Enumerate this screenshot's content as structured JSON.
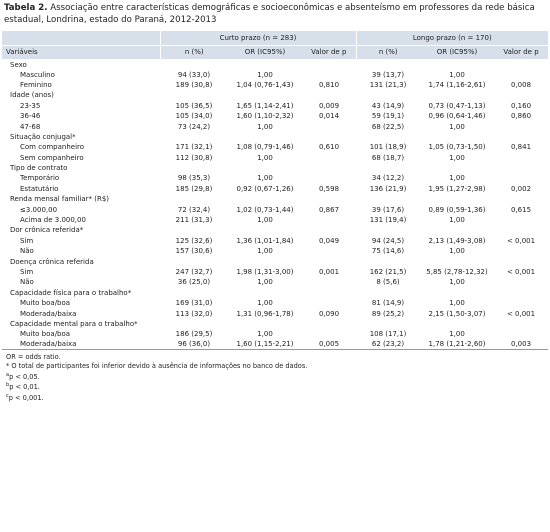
{
  "title": {
    "label": "Tabela 2.",
    "text": "Associação entre características demográficas e socioeconômicas e absenteísmo em professores da rede básica estadual, Londrina, estado do Paraná, 2012-2013"
  },
  "table": {
    "groups": [
      "Curto prazo (n = 283)",
      "Longo prazo (n = 170)"
    ],
    "columns": [
      "Variáveis",
      "n (%)",
      "OR (IC95%)",
      "Valor de p",
      "n (%)",
      "OR (IC95%)",
      "Valor de p"
    ],
    "rows": [
      {
        "group": "Sexo"
      },
      {
        "cells": [
          "Masculino",
          "94 (33,0)",
          "1,00",
          null,
          "39 (13,7)",
          "1,00",
          null
        ]
      },
      {
        "cells": [
          "Feminino",
          "189 (30,8)",
          "1,04 (0,76-1,43)",
          "0,810",
          "131 (21,3)",
          "1,74 (1,16-2,61)",
          "0,008"
        ]
      },
      {
        "group": "Idade (anos)"
      },
      {
        "cells": [
          "23-35",
          "105 (36,5)",
          "1,65 (1,14-2,41)",
          "0,009",
          "43 (14,9)",
          "0,73 (0,47-1,13)",
          "0,160"
        ]
      },
      {
        "cells": [
          "36-46",
          "105 (34,0)",
          "1,60 (1,10-2,32)",
          "0,014",
          "59 (19,1)",
          "0,96 (0,64-1,46)",
          "0,860"
        ]
      },
      {
        "cells": [
          "47-68",
          "73 (24,2)",
          "1,00",
          null,
          "68 (22,5)",
          "1,00",
          null
        ]
      },
      {
        "group": "Situação conjugal*"
      },
      {
        "cells": [
          "Com companheiro",
          "171 (32,1)",
          "1,08 (0,79-1,46)",
          "0,610",
          "101 (18,9)",
          "1,05 (0,73-1,50)",
          "0,841"
        ]
      },
      {
        "cells": [
          "Sem companheiro",
          "112 (30,8)",
          "1,00",
          null,
          "68 (18,7)",
          "1,00",
          null
        ]
      },
      {
        "group": "Tipo de contrato"
      },
      {
        "cells": [
          "Temporário",
          "98 (35,3)",
          "1,00",
          null,
          "34 (12,2)",
          "1,00",
          null
        ]
      },
      {
        "cells": [
          "Estatutário",
          "185 (29,8)",
          "0,92 (0,67-1,26)",
          "0,598",
          "136 (21,9)",
          "1,95 (1,27-2,98)",
          "0,002"
        ]
      },
      {
        "group": "Renda mensal familiar* (R$)"
      },
      {
        "cells": [
          "≤3.000,00",
          "72 (32,4)",
          "1,02 (0,73-1,44)",
          "0,867",
          "39 (17,6)",
          "0,89 (0,59-1,36)",
          "0,615"
        ]
      },
      {
        "cells": [
          "Acima de 3.000,00",
          "211 (31,3)",
          "1,00",
          null,
          "131 (19,4)",
          "1,00",
          null
        ]
      },
      {
        "group": "Dor crônica referida*"
      },
      {
        "cells": [
          "Sim",
          "125 (32,6)",
          "1,36 (1,01-1,84)",
          "0,049",
          "94 (24,5)",
          "2,13 (1,49-3,08)",
          "< 0,001"
        ]
      },
      {
        "cells": [
          "Não",
          "157 (30,6)",
          "1,00",
          null,
          "75 (14,6)",
          "1,00",
          null
        ]
      },
      {
        "group": "Doença crônica referida"
      },
      {
        "cells": [
          "Sim",
          "247 (32,7)",
          "1,98 (1,31-3,00)",
          "0,001",
          "162 (21,5)",
          "5,85 (2,78-12,32)",
          "< 0,001"
        ]
      },
      {
        "cells": [
          "Não",
          "36 (25,0)",
          "1,00",
          null,
          "8 (5,6)",
          "1,00",
          null
        ]
      },
      {
        "group": "Capacidade física para o trabalho*"
      },
      {
        "cells": [
          "Muito boa/boa",
          "169 (31,0)",
          "1,00",
          null,
          "81 (14,9)",
          "1,00",
          null
        ]
      },
      {
        "cells": [
          "Moderada/baixa",
          "113 (32,0)",
          "1,31 (0,96-1,78)",
          "0,090",
          "89 (25,2)",
          "2,15 (1,50-3,07)",
          "< 0,001"
        ]
      },
      {
        "group": "Capacidade mental para o trabalho*"
      },
      {
        "cells": [
          "Muito boa/boa",
          "186 (29,5)",
          "1,00",
          null,
          "108 (17,1)",
          "1,00",
          null
        ]
      },
      {
        "cells": [
          "Moderada/baixa",
          "96 (36,0)",
          "1,60 (1,15-2,21)",
          "0,005",
          "62 (23,2)",
          "1,78 (1,21-2,60)",
          "0,003"
        ]
      }
    ]
  },
  "notes": [
    {
      "text": "OR = odds ratio."
    },
    {
      "text": "* O total de participantes foi inferior devido à ausência de informações no banco de dados."
    },
    {
      "mark": "a",
      "text": "p < 0,05."
    },
    {
      "mark": "b",
      "text": "p < 0,01."
    },
    {
      "mark": "c",
      "text": "p < 0,001."
    }
  ]
}
